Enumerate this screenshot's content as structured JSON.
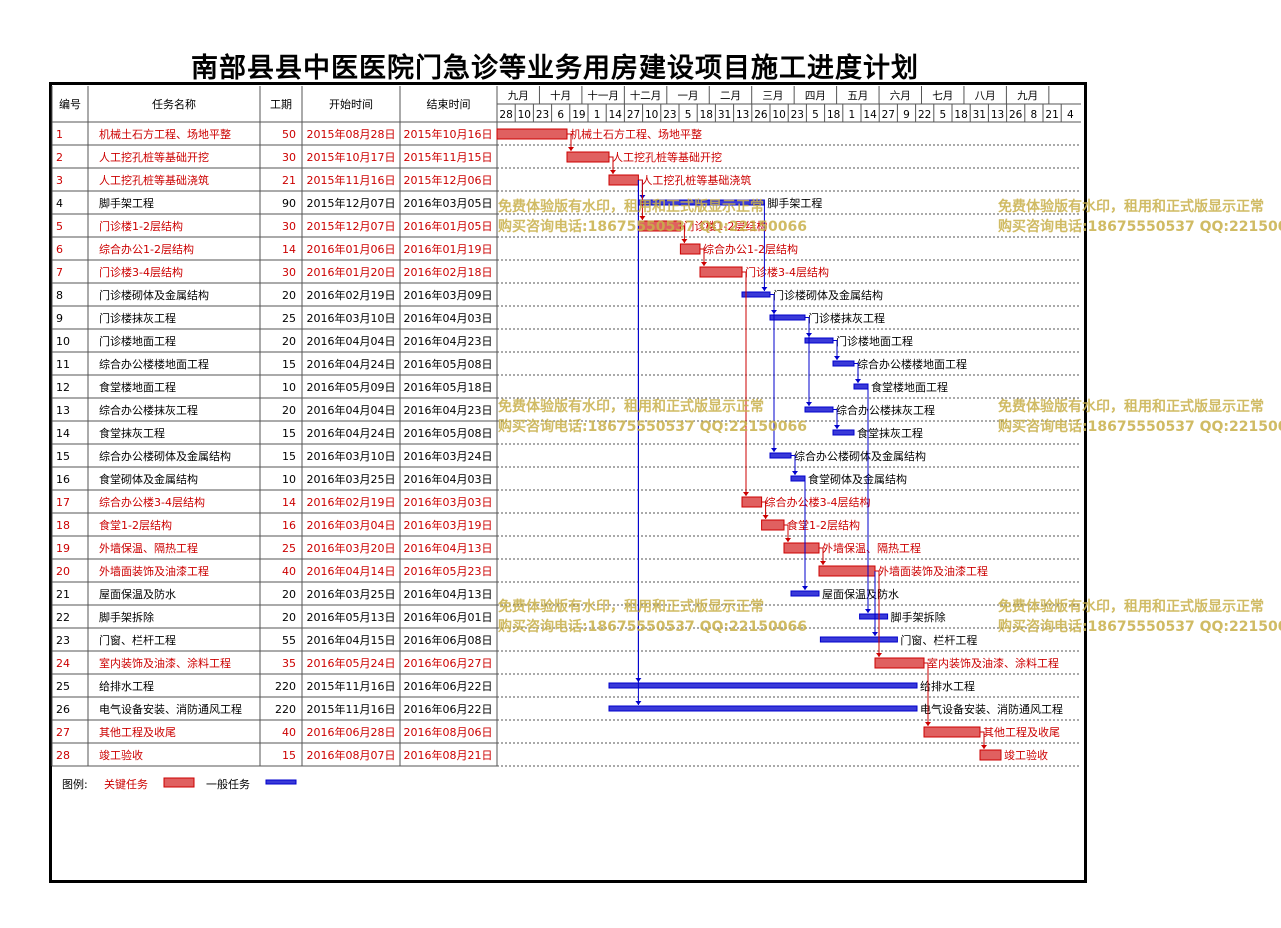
{
  "title": "南部县县中医医院门急诊等业务用房建设项目施工进度计划",
  "headers": {
    "id": "编号",
    "name": "任务名称",
    "dur": "工期",
    "start": "开始时间",
    "end": "结束时间"
  },
  "months": [
    "九月",
    "十月",
    "十一月",
    "十二月",
    "一月",
    "二月",
    "三月",
    "四月",
    "五月",
    "六月",
    "七月",
    "八月",
    "九月"
  ],
  "days": [
    "28",
    "10",
    "23",
    "6",
    "19",
    "1",
    "14",
    "27",
    "10",
    "23",
    "5",
    "18",
    "31",
    "13",
    "26",
    "10",
    "23",
    "5",
    "18",
    "1",
    "14",
    "27",
    "9",
    "22",
    "5",
    "18",
    "31",
    "13",
    "26",
    "8",
    "21",
    "4"
  ],
  "tasks": [
    {
      "id": "1",
      "name": "机械土石方工程、场地平整",
      "dur": "50",
      "start": "2015年08月28日",
      "end": "2015年10月16日",
      "critical": true
    },
    {
      "id": "2",
      "name": "人工挖孔桩等基础开挖",
      "dur": "30",
      "start": "2015年10月17日",
      "end": "2015年11月15日",
      "critical": true
    },
    {
      "id": "3",
      "name": "人工挖孔桩等基础浇筑",
      "dur": "21",
      "start": "2015年11月16日",
      "end": "2015年12月06日",
      "critical": true
    },
    {
      "id": "4",
      "name": "脚手架工程",
      "dur": "90",
      "start": "2015年12月07日",
      "end": "2016年03月05日",
      "critical": false
    },
    {
      "id": "5",
      "name": "门诊楼1-2层结构",
      "dur": "30",
      "start": "2015年12月07日",
      "end": "2016年01月05日",
      "critical": true
    },
    {
      "id": "6",
      "name": "综合办公1-2层结构",
      "dur": "14",
      "start": "2016年01月06日",
      "end": "2016年01月19日",
      "critical": true
    },
    {
      "id": "7",
      "name": "门诊楼3-4层结构",
      "dur": "30",
      "start": "2016年01月20日",
      "end": "2016年02月18日",
      "critical": true
    },
    {
      "id": "8",
      "name": "门诊楼砌体及金属结构",
      "dur": "20",
      "start": "2016年02月19日",
      "end": "2016年03月09日",
      "critical": false
    },
    {
      "id": "9",
      "name": "门诊楼抹灰工程",
      "dur": "25",
      "start": "2016年03月10日",
      "end": "2016年04月03日",
      "critical": false
    },
    {
      "id": "10",
      "name": "门诊楼地面工程",
      "dur": "20",
      "start": "2016年04月04日",
      "end": "2016年04月23日",
      "critical": false
    },
    {
      "id": "11",
      "name": "综合办公楼楼地面工程",
      "dur": "15",
      "start": "2016年04月24日",
      "end": "2016年05月08日",
      "critical": false
    },
    {
      "id": "12",
      "name": "食堂楼地面工程",
      "dur": "10",
      "start": "2016年05月09日",
      "end": "2016年05月18日",
      "critical": false
    },
    {
      "id": "13",
      "name": "综合办公楼抹灰工程",
      "dur": "20",
      "start": "2016年04月04日",
      "end": "2016年04月23日",
      "critical": false
    },
    {
      "id": "14",
      "name": "食堂抹灰工程",
      "dur": "15",
      "start": "2016年04月24日",
      "end": "2016年05月08日",
      "critical": false
    },
    {
      "id": "15",
      "name": "综合办公楼砌体及金属结构",
      "dur": "15",
      "start": "2016年03月10日",
      "end": "2016年03月24日",
      "critical": false
    },
    {
      "id": "16",
      "name": "食堂砌体及金属结构",
      "dur": "10",
      "start": "2016年03月25日",
      "end": "2016年04月03日",
      "critical": false
    },
    {
      "id": "17",
      "name": "综合办公楼3-4层结构",
      "dur": "14",
      "start": "2016年02月19日",
      "end": "2016年03月03日",
      "critical": true
    },
    {
      "id": "18",
      "name": "食堂1-2层结构",
      "dur": "16",
      "start": "2016年03月04日",
      "end": "2016年03月19日",
      "critical": true
    },
    {
      "id": "19",
      "name": "外墙保温、隔热工程",
      "dur": "25",
      "start": "2016年03月20日",
      "end": "2016年04月13日",
      "critical": true
    },
    {
      "id": "20",
      "name": "外墙面装饰及油漆工程",
      "dur": "40",
      "start": "2016年04月14日",
      "end": "2016年05月23日",
      "critical": true
    },
    {
      "id": "21",
      "name": "屋面保温及防水",
      "dur": "20",
      "start": "2016年03月25日",
      "end": "2016年04月13日",
      "critical": false
    },
    {
      "id": "22",
      "name": "脚手架拆除",
      "dur": "20",
      "start": "2016年05月13日",
      "end": "2016年06月01日",
      "critical": false
    },
    {
      "id": "23",
      "name": "门窗、栏杆工程",
      "dur": "55",
      "start": "2016年04月15日",
      "end": "2016年06月08日",
      "critical": false
    },
    {
      "id": "24",
      "name": "室内装饰及油漆、涂料工程",
      "dur": "35",
      "start": "2016年05月24日",
      "end": "2016年06月27日",
      "critical": true
    },
    {
      "id": "25",
      "name": "给排水工程",
      "dur": "220",
      "start": "2015年11月16日",
      "end": "2016年06月22日",
      "critical": false
    },
    {
      "id": "26",
      "name": "电气设备安装、消防通风工程",
      "dur": "220",
      "start": "2015年11月16日",
      "end": "2016年06月22日",
      "critical": false
    },
    {
      "id": "27",
      "name": "其他工程及收尾",
      "dur": "40",
      "start": "2016年06月28日",
      "end": "2016年08月06日",
      "critical": true
    },
    {
      "id": "28",
      "name": "竣工验收",
      "dur": "15",
      "start": "2016年08月07日",
      "end": "2016年08月21日",
      "critical": true
    }
  ],
  "legend": {
    "label": "图例:",
    "critical": "关键任务",
    "normal": "一般任务"
  },
  "watermark": {
    "line1": "免费体验版有水印，租用和正式版显示正常",
    "line2": "购买咨询电话:18675550537 QQ:22150066"
  },
  "colors": {
    "critical": "#cc0000",
    "critical_fill": "#e06060",
    "normal": "#0000cc",
    "normal_fill": "#3a3ad8",
    "grid": "#555555"
  },
  "chart_data": {
    "type": "gantt",
    "axis_start": "2015-08-28",
    "tick_interval_days": 13,
    "bars": [
      [
        "2015-08-28",
        "2015-10-16"
      ],
      [
        "2015-10-17",
        "2015-11-15"
      ],
      [
        "2015-11-16",
        "2015-12-06"
      ],
      [
        "2015-12-07",
        "2016-03-05"
      ],
      [
        "2015-12-07",
        "2016-01-05"
      ],
      [
        "2016-01-06",
        "2016-01-19"
      ],
      [
        "2016-01-20",
        "2016-02-18"
      ],
      [
        "2016-02-19",
        "2016-03-09"
      ],
      [
        "2016-03-10",
        "2016-04-03"
      ],
      [
        "2016-04-04",
        "2016-04-23"
      ],
      [
        "2016-04-24",
        "2016-05-08"
      ],
      [
        "2016-05-09",
        "2016-05-18"
      ],
      [
        "2016-04-04",
        "2016-04-23"
      ],
      [
        "2016-04-24",
        "2016-05-08"
      ],
      [
        "2016-03-10",
        "2016-03-24"
      ],
      [
        "2016-03-25",
        "2016-04-03"
      ],
      [
        "2016-02-19",
        "2016-03-03"
      ],
      [
        "2016-03-04",
        "2016-03-19"
      ],
      [
        "2016-03-20",
        "2016-04-13"
      ],
      [
        "2016-04-14",
        "2016-05-23"
      ],
      [
        "2016-03-25",
        "2016-04-13"
      ],
      [
        "2016-05-13",
        "2016-06-01"
      ],
      [
        "2016-04-15",
        "2016-06-08"
      ],
      [
        "2016-05-24",
        "2016-06-27"
      ],
      [
        "2015-11-16",
        "2016-06-22"
      ],
      [
        "2015-11-16",
        "2016-06-22"
      ],
      [
        "2016-06-28",
        "2016-08-06"
      ],
      [
        "2016-08-07",
        "2016-08-21"
      ]
    ],
    "links": [
      [
        1,
        2
      ],
      [
        2,
        3
      ],
      [
        3,
        4
      ],
      [
        3,
        5
      ],
      [
        3,
        25
      ],
      [
        3,
        26
      ],
      [
        5,
        6
      ],
      [
        6,
        7
      ],
      [
        4,
        8
      ],
      [
        8,
        9
      ],
      [
        9,
        10
      ],
      [
        10,
        11
      ],
      [
        11,
        12
      ],
      [
        9,
        13
      ],
      [
        13,
        14
      ],
      [
        7,
        17
      ],
      [
        17,
        18
      ],
      [
        18,
        19
      ],
      [
        19,
        20
      ],
      [
        8,
        15
      ],
      [
        15,
        16
      ],
      [
        16,
        21
      ],
      [
        20,
        23
      ],
      [
        20,
        24
      ],
      [
        12,
        22
      ],
      [
        24,
        27
      ],
      [
        27,
        28
      ]
    ]
  }
}
